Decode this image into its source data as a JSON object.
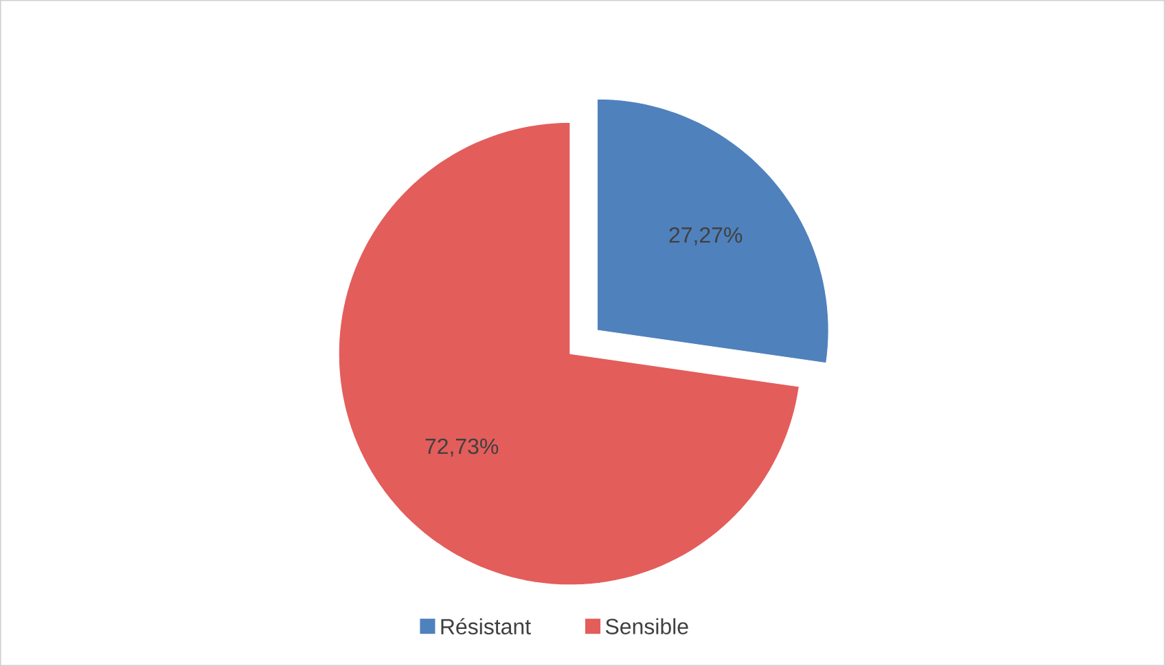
{
  "chart_data": {
    "type": "pie",
    "categories": [
      "Résistant",
      "Sensible"
    ],
    "values": [
      27.27,
      72.73
    ],
    "colors": [
      "#4f81bd",
      "#e35d5b"
    ],
    "value_labels": [
      "27,27%",
      "72,73%"
    ],
    "legend": "bottom"
  }
}
